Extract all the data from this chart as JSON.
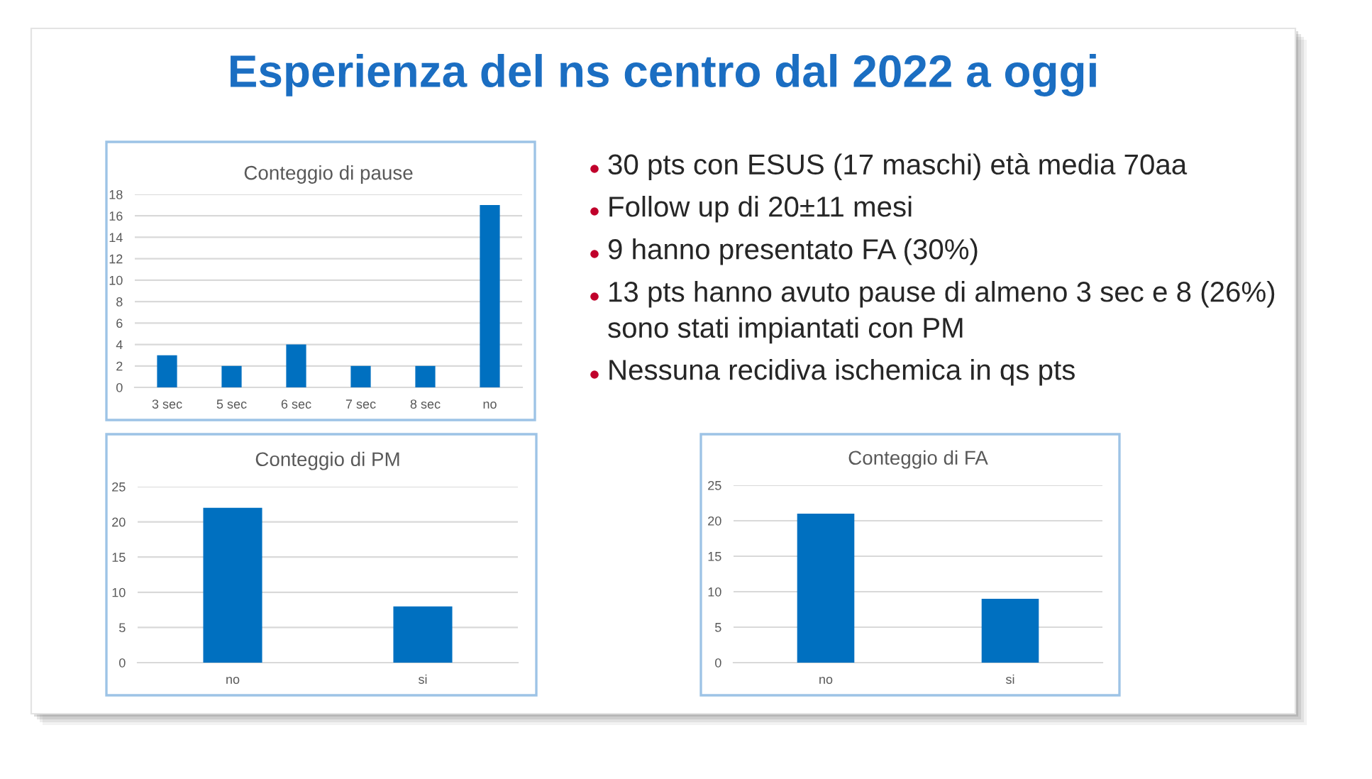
{
  "chart_data": [
    {
      "type": "other",
      "title": "Esperienza del ns centro dal 2022 a oggi"
    },
    {
      "type": "bar",
      "title": "Conteggio di pause",
      "categories": [
        "3 sec",
        "5 sec",
        "6 sec",
        "7 sec",
        "8 sec",
        "no"
      ],
      "values": [
        3,
        2,
        4,
        2,
        2,
        17
      ],
      "color": "#0070c0",
      "ylim": [
        0,
        18
      ],
      "yticks": [
        0,
        2,
        4,
        6,
        8,
        10,
        12,
        14,
        16,
        18
      ],
      "grid": "y"
    },
    {
      "type": "other",
      "annotations": [
        "30 pts con ESUS (17 maschi) età media 70aa",
        "Follow up di 20±11 mesi",
        "9 hanno presentato FA (30%)",
        "13 pts hanno avuto pause di almeno 3 sec e 8 (26%)\nsono stati impiantati con PM",
        "Nessuna recidiva ischemica in qs pts"
      ]
    },
    {
      "type": "bar",
      "title": "Conteggio di PM",
      "categories": [
        "no",
        "si"
      ],
      "values": [
        22,
        8
      ],
      "color": "#0070c0",
      "ylim": [
        0,
        25
      ],
      "yticks": [
        0,
        5,
        10,
        15,
        20,
        25
      ],
      "grid": "y"
    },
    {
      "type": "bar",
      "title": "Conteggio di FA",
      "categories": [
        "no",
        "si"
      ],
      "values": [
        21,
        9
      ],
      "color": "#0070c0",
      "ylim": [
        0,
        25
      ],
      "yticks": [
        0,
        5,
        10,
        15,
        20,
        25
      ],
      "grid": "y"
    }
  ]
}
